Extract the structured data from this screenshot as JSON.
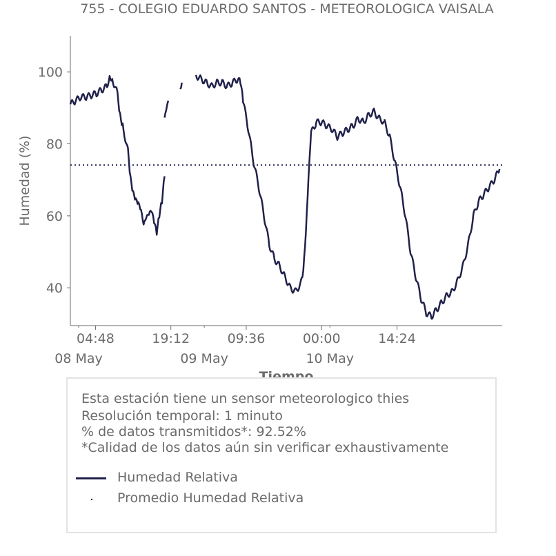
{
  "page": {
    "title": "755 - COLEGIO EDUARDO SANTOS - METEOROLOGICA VAISALA"
  },
  "chart_data": {
    "type": "line",
    "title": "755 - COLEGIO EDUARDO SANTOS - METEOROLOGICA VAISALA",
    "xlabel": "Tiempo",
    "ylabel": "Humedad (%)",
    "ylim": [
      29.5,
      110
    ],
    "xlim_hours": [
      0,
      60
    ],
    "y_ticks": [
      40,
      60,
      80,
      100
    ],
    "x_ticks": [
      {
        "hour": 4.8,
        "label": "04:48"
      },
      {
        "hour": 19.2,
        "label": "19:12"
      },
      {
        "hour": 33.6,
        "label": "09:36"
      },
      {
        "hour": 48.0,
        "label": "00:00"
      },
      {
        "hour": 62.4,
        "label": "14:24"
      }
    ],
    "date_labels": [
      {
        "hour": 0,
        "label": "08 May"
      },
      {
        "hour": 24,
        "label": "09 May"
      },
      {
        "hour": 48,
        "label": "10 May"
      }
    ],
    "mean_value": 74.1,
    "series": [
      {
        "name": "Humedad Relativa",
        "color": "#20214a",
        "segments": [
          [
            [
              0,
              91
            ],
            [
              1,
              92
            ],
            [
              2,
              93
            ],
            [
              3,
              93
            ],
            [
              4,
              93.5
            ],
            [
              5,
              94
            ],
            [
              6,
              95
            ],
            [
              7,
              96
            ],
            [
              7.5,
              99
            ],
            [
              8,
              98
            ],
            [
              9,
              94
            ],
            [
              9.5,
              88
            ],
            [
              10,
              85
            ],
            [
              11,
              78
            ],
            [
              11.5,
              70
            ],
            [
              12,
              66
            ],
            [
              12.5,
              64
            ],
            [
              13,
              63
            ],
            [
              13.5,
              61
            ],
            [
              14,
              57
            ],
            [
              14.5,
              59
            ],
            [
              15,
              60
            ],
            [
              15.5,
              61
            ],
            [
              16,
              58
            ],
            [
              16.5,
              55
            ],
            [
              17,
              60
            ],
            [
              17.5,
              64
            ],
            [
              18,
              71
            ]
          ],
          [
            [
              18,
              88
            ],
            [
              18.3,
              90
            ],
            [
              18.7,
              92
            ]
          ],
          [
            [
              21,
              96
            ],
            [
              21.3,
              97
            ]
          ],
          [
            [
              24,
              99
            ],
            [
              25,
              98
            ],
            [
              26,
              97
            ],
            [
              27,
              96
            ],
            [
              28,
              97
            ],
            [
              29,
              97
            ],
            [
              30,
              96
            ],
            [
              31,
              97
            ],
            [
              32,
              98
            ],
            [
              32.5,
              97
            ],
            [
              33,
              92
            ],
            [
              34,
              84
            ],
            [
              35,
              75
            ],
            [
              36,
              68
            ],
            [
              37,
              60
            ],
            [
              38,
              52
            ],
            [
              39,
              48
            ],
            [
              40,
              46
            ],
            [
              41,
              43
            ],
            [
              42,
              40
            ],
            [
              43,
              39
            ],
            [
              44,
              41
            ],
            [
              44.5,
              44
            ],
            [
              45,
              55
            ],
            [
              45.5,
              70
            ],
            [
              46,
              83
            ],
            [
              47,
              86
            ],
            [
              48,
              86
            ],
            [
              49,
              85
            ],
            [
              50,
              84
            ],
            [
              51,
              82
            ],
            [
              52,
              83
            ],
            [
              53,
              84
            ],
            [
              54,
              85
            ],
            [
              55,
              87
            ],
            [
              56,
              86
            ],
            [
              57,
              88
            ],
            [
              58,
              89
            ],
            [
              59,
              87
            ],
            [
              60,
              86
            ]
          ],
          [
            [
              60,
              86
            ],
            [
              61,
              82
            ],
            [
              62,
              75
            ],
            [
              63,
              68
            ],
            [
              64,
              60
            ],
            [
              65,
              50
            ],
            [
              66,
              43
            ],
            [
              67,
              37
            ],
            [
              68,
              33
            ],
            [
              69,
              32
            ],
            [
              70,
              34
            ],
            [
              71,
              36
            ],
            [
              72,
              38
            ],
            [
              73,
              39
            ],
            [
              74,
              42
            ],
            [
              75,
              46
            ],
            [
              76,
              52
            ],
            [
              77,
              60
            ],
            [
              78,
              64
            ],
            [
              79,
              66
            ],
            [
              80,
              68
            ],
            [
              81,
              70
            ],
            [
              82,
              73
            ]
          ]
        ]
      },
      {
        "name": "Promedio Humedad Relativa",
        "color": "#20214a",
        "style": "dotted",
        "value": 74.1
      }
    ]
  },
  "info": {
    "lines": [
      "Esta estación tiene un sensor meteorologico thies",
      "Resolución temporal: 1 minuto",
      "% de datos transmitidos*: 92.52%",
      "*Calidad de los datos aún sin verificar exhaustivamente"
    ]
  },
  "legend": {
    "line_label": "Humedad Relativa",
    "dot_label": "Promedio Humedad Relativa"
  }
}
